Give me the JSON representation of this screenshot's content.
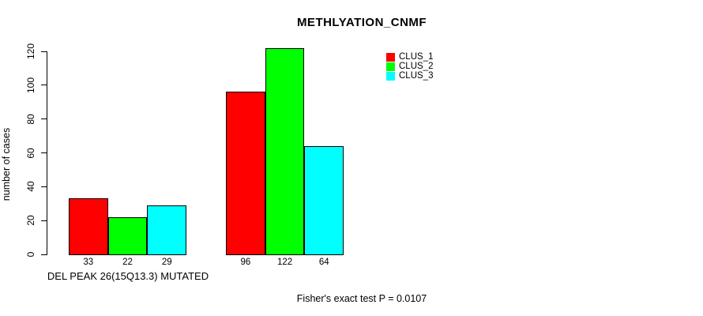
{
  "chart_data": {
    "type": "bar",
    "title": "METHLYATION_CNMF",
    "ylabel": "number of cases",
    "xlabel": "DEL PEAK 26(15Q13.3) MUTATED",
    "ylim": [
      0,
      120
    ],
    "yticks": [
      0,
      20,
      40,
      60,
      80,
      100,
      120
    ],
    "grid": false,
    "legend_position": "top-right",
    "categories": [
      "DEL PEAK 26(15Q13.3) MUTATED",
      ""
    ],
    "series": [
      {
        "name": "CLUS_1",
        "color": "#ff0000",
        "values": [
          33,
          96
        ]
      },
      {
        "name": "CLUS_2",
        "color": "#00ff00",
        "values": [
          22,
          122
        ]
      },
      {
        "name": "CLUS_3",
        "color": "#00ffff",
        "values": [
          29,
          64
        ]
      }
    ],
    "bar_value_labels": [
      33,
      22,
      29,
      96,
      122,
      64
    ],
    "annotation": "Fisher's exact test P = 0.0107"
  }
}
